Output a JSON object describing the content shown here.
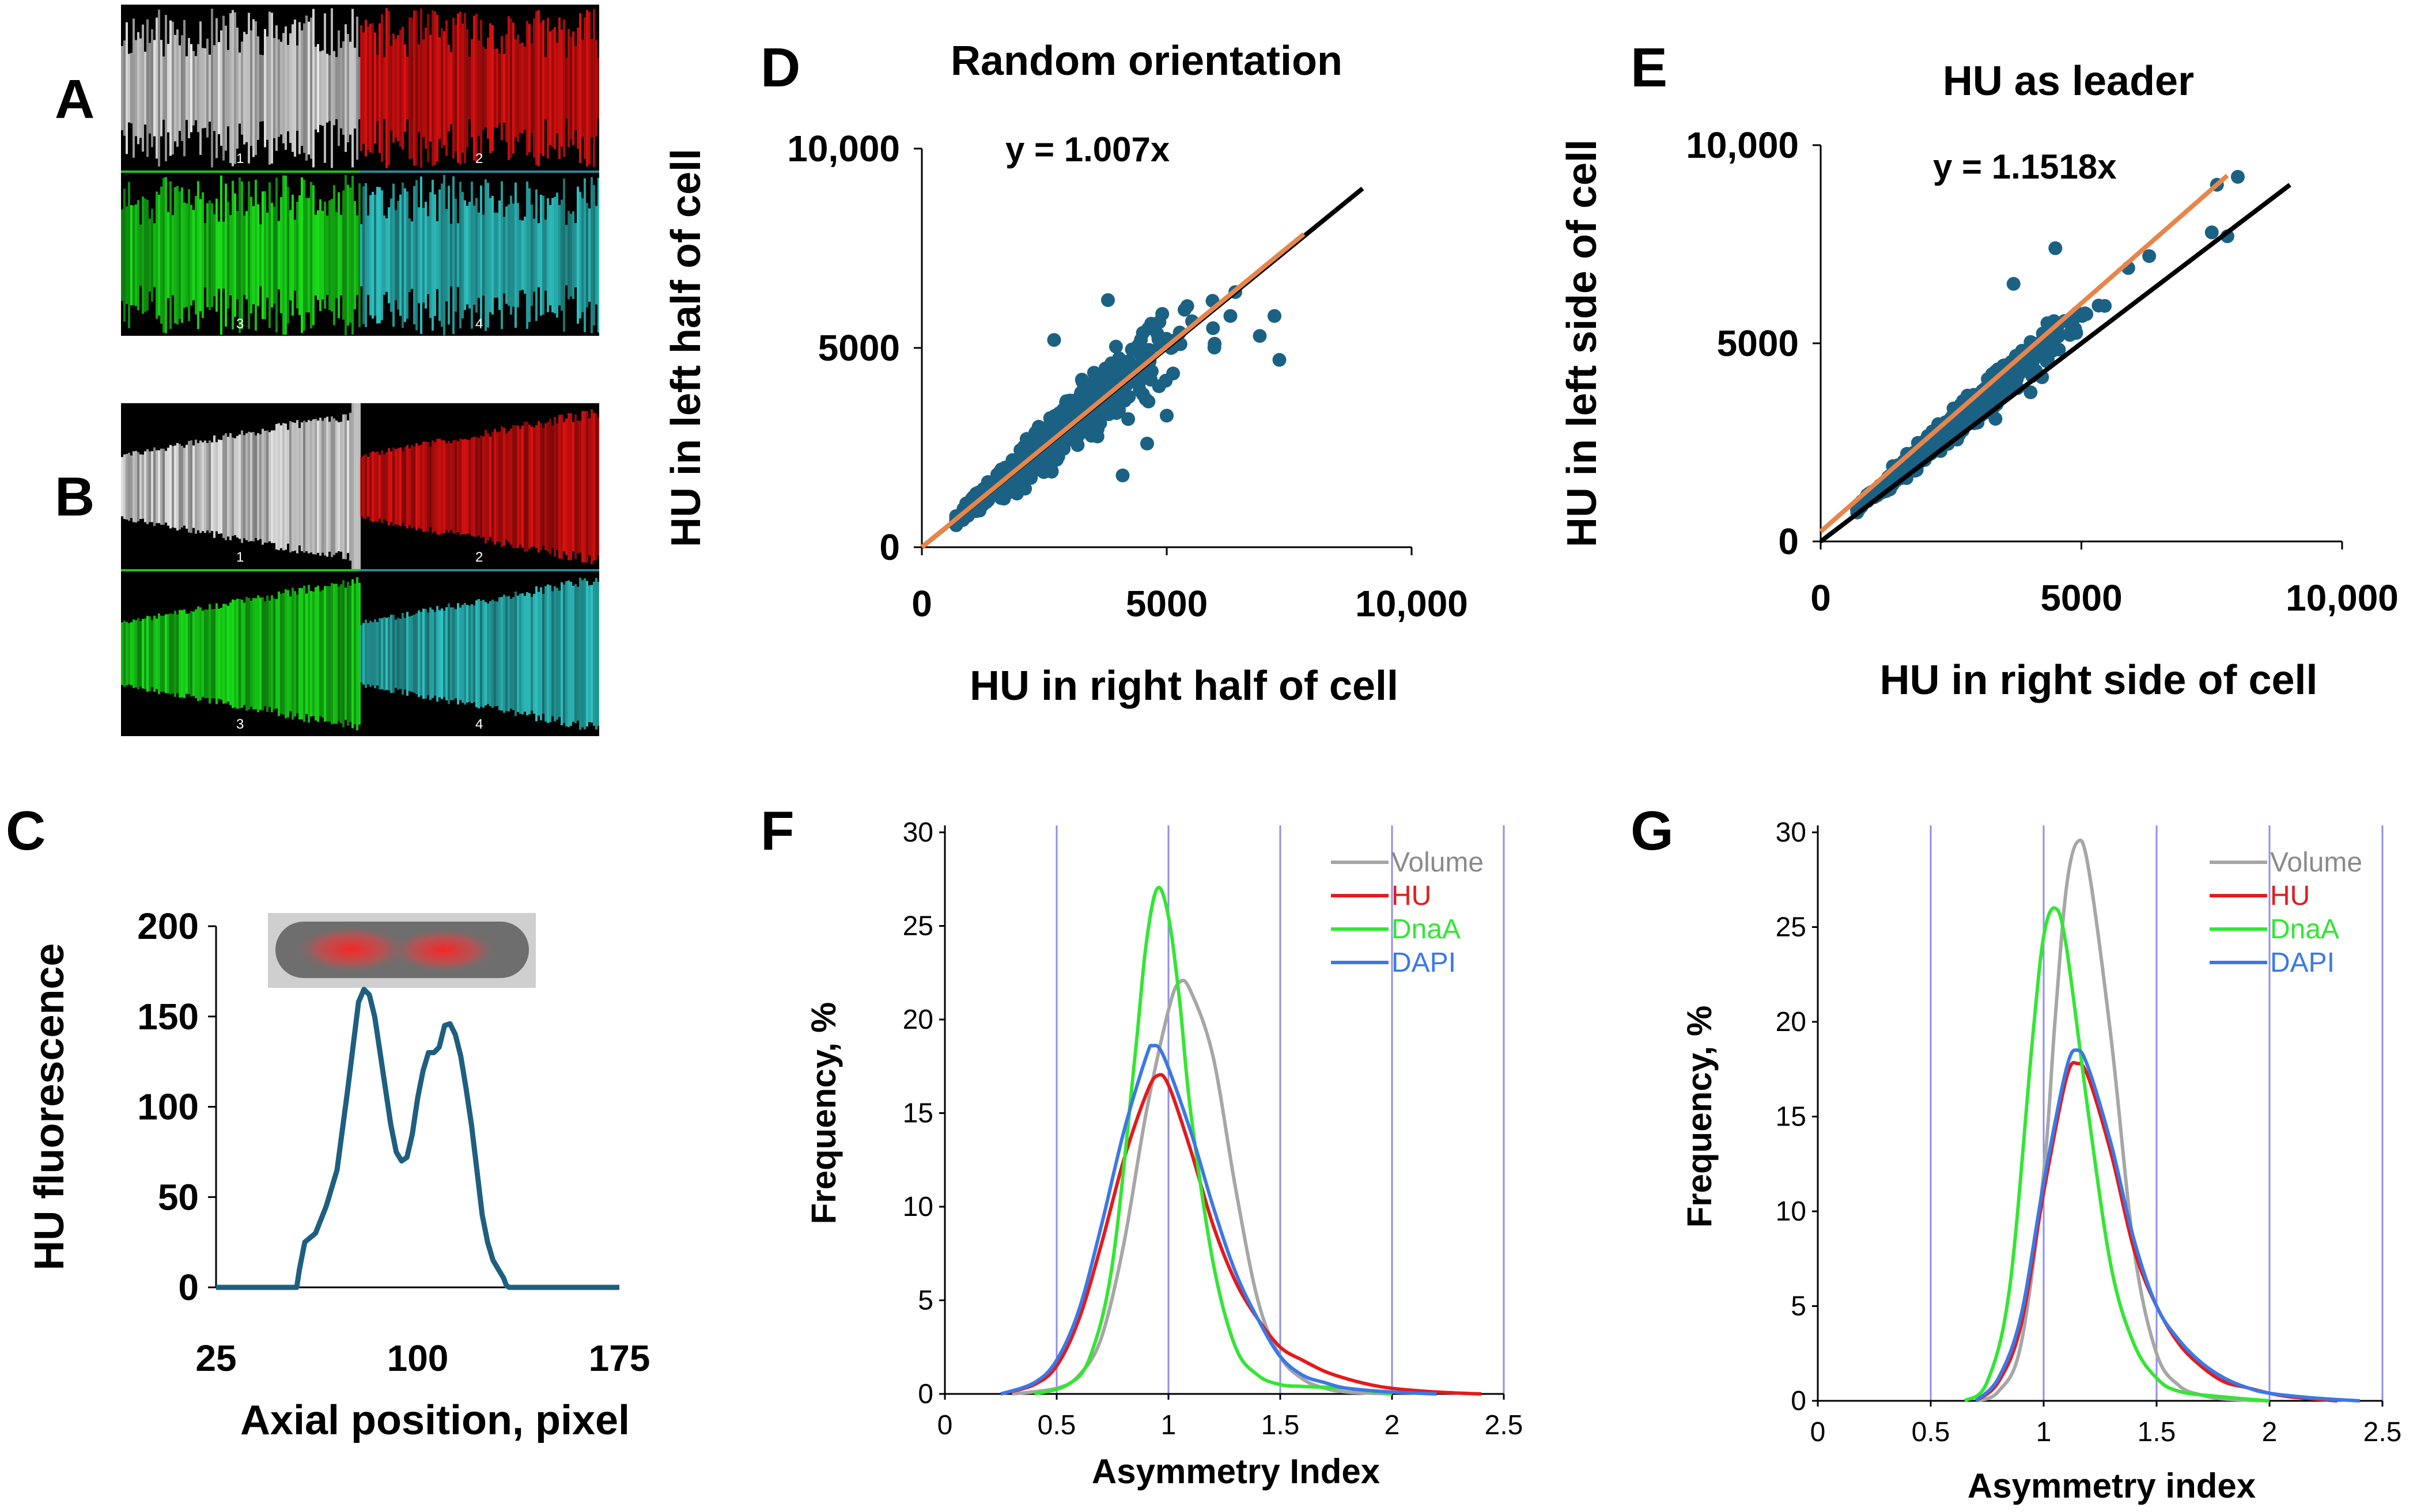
{
  "panels": {
    "A": {
      "label": "A",
      "tiles": [
        {
          "number": "1",
          "color": "#e6e6e6"
        },
        {
          "number": "2",
          "color": "#e01010"
        },
        {
          "number": "3",
          "color": "#19e019"
        },
        {
          "number": "4",
          "color": "#2fc4c4"
        }
      ]
    },
    "B": {
      "label": "B",
      "tiles": [
        {
          "number": "1",
          "color": "#e6e6e6"
        },
        {
          "number": "2",
          "color": "#e01010"
        },
        {
          "number": "3",
          "color": "#19e019"
        },
        {
          "number": "4",
          "color": "#2fc4c4"
        }
      ]
    },
    "C": {
      "label": "C"
    },
    "D": {
      "label": "D"
    },
    "E": {
      "label": "E"
    },
    "F": {
      "label": "F"
    },
    "G": {
      "label": "G"
    }
  },
  "colors": {
    "scatter": "#1b6184",
    "fit": "#e8854a",
    "identity": "#000000",
    "profile": "#1e5f80",
    "volume": "#a6a6a6",
    "hu": "#e41a1c",
    "dnaa": "#33e633",
    "dapi": "#3b78e7",
    "grid": "#8f8fe8"
  },
  "chart_data": [
    {
      "id": "C",
      "type": "line",
      "title": "",
      "xlabel": "Axial position, pixel",
      "ylabel": "HU fluorescence",
      "xlim": [
        25,
        175
      ],
      "ylim": [
        0,
        200
      ],
      "xticks": [
        "25",
        "100",
        "175"
      ],
      "xtick_values": [
        25,
        100,
        175
      ],
      "yticks": [
        "0",
        "50",
        "100",
        "150",
        "200"
      ],
      "ytick_values": [
        0,
        50,
        100,
        150,
        200
      ],
      "x": [
        25,
        55,
        56,
        58,
        62,
        66,
        70,
        74,
        78,
        80,
        82,
        84,
        86,
        88,
        90,
        92,
        94,
        96,
        98,
        100,
        102,
        104,
        106,
        108,
        110,
        112,
        114,
        116,
        118,
        120,
        122,
        124,
        126,
        128,
        130,
        132,
        133,
        134,
        175
      ],
      "y": [
        0,
        0,
        10,
        25,
        30,
        45,
        65,
        110,
        158,
        165,
        162,
        150,
        130,
        110,
        90,
        75,
        70,
        72,
        85,
        105,
        120,
        130,
        130,
        133,
        145,
        146,
        140,
        128,
        110,
        90,
        65,
        40,
        25,
        15,
        10,
        5,
        1,
        0,
        0
      ]
    },
    {
      "id": "D",
      "type": "scatter",
      "title": "Random orientation",
      "xlabel": "HU in right half of cell",
      "ylabel": "HU in left half of cell",
      "xlim": [
        0,
        10000
      ],
      "ylim": [
        0,
        10000
      ],
      "xticks": [
        "0",
        "5000",
        "10,000"
      ],
      "xtick_values": [
        0,
        5000,
        10000
      ],
      "yticks": [
        "0",
        "5000",
        "10,000"
      ],
      "ytick_values": [
        0,
        5000,
        10000
      ],
      "fit_label": "y = 1.007x",
      "fit_slope": 1.007,
      "identity_line_xrange": [
        0,
        9000
      ],
      "fit_line_xrange": [
        0,
        7800
      ],
      "n_points": 640,
      "spread": 0.11,
      "x_mean": 2700,
      "x_sd": 1050,
      "x_range": [
        700,
        8000
      ],
      "outliers": [
        [
          6400,
          6400
        ],
        [
          6300,
          5800
        ],
        [
          7200,
          5800
        ],
        [
          7300,
          4700
        ],
        [
          6900,
          5300
        ],
        [
          4100,
          1800
        ],
        [
          4600,
          2600
        ],
        [
          5000,
          3300
        ],
        [
          2700,
          5200
        ],
        [
          3800,
          6200
        ]
      ]
    },
    {
      "id": "E",
      "type": "scatter",
      "title": "HU as leader",
      "xlabel": "HU in right side of cell",
      "ylabel": "HU in left side of cell",
      "xlim": [
        0,
        10000
      ],
      "ylim": [
        0,
        10000
      ],
      "xticks": [
        "0",
        "5000",
        "10,000"
      ],
      "xtick_values": [
        0,
        5000,
        10000
      ],
      "yticks": [
        "0",
        "5000",
        "10,000"
      ],
      "ytick_values": [
        0,
        5000,
        10000
      ],
      "fit_label": "y = 1.1518x",
      "fit_slope": 1.1518,
      "identity_line_xrange": [
        0,
        9000
      ],
      "fit_line_xrange": [
        0,
        7800
      ],
      "n_points": 640,
      "spread": 0.06,
      "x_mean": 2600,
      "x_sd": 1000,
      "x_range": [
        700,
        8000
      ],
      "outliers": [
        [
          3700,
          6500
        ],
        [
          4500,
          7400
        ],
        [
          7600,
          9000
        ],
        [
          8000,
          9200
        ],
        [
          7500,
          7800
        ],
        [
          7800,
          7700
        ],
        [
          5900,
          6900
        ],
        [
          6300,
          7200
        ]
      ]
    },
    {
      "id": "F",
      "type": "line",
      "title": "",
      "xlabel": "Asymmetry Index",
      "ylabel": "Frequency, %",
      "xlim": [
        0,
        2.5
      ],
      "ylim": [
        0,
        30
      ],
      "xticks": [
        "0",
        "0.5",
        "1",
        "1.5",
        "2",
        "2.5"
      ],
      "xtick_values": [
        0,
        0.5,
        1,
        1.5,
        2,
        2.5
      ],
      "yticks": [
        "0",
        "5",
        "10",
        "15",
        "20",
        "25",
        "30"
      ],
      "ytick_values": [
        0,
        5,
        10,
        15,
        20,
        25,
        30
      ],
      "vgrid": [
        0.5,
        1,
        1.5,
        2,
        2.5
      ],
      "legend_position": "top-right",
      "series": [
        {
          "name": "Volume",
          "color_key": "volume",
          "x": [
            0.3,
            0.5,
            0.6,
            0.7,
            0.8,
            0.9,
            1.0,
            1.05,
            1.1,
            1.2,
            1.3,
            1.4,
            1.5,
            1.6,
            1.7,
            1.8,
            2.0
          ],
          "y": [
            0,
            0.3,
            1.0,
            3.0,
            8.0,
            15.0,
            20.5,
            22.0,
            21.5,
            18.0,
            11.0,
            5.0,
            2.0,
            0.8,
            0.3,
            0.1,
            0
          ]
        },
        {
          "name": "HU",
          "color_key": "hu",
          "x": [
            0.25,
            0.4,
            0.5,
            0.6,
            0.7,
            0.8,
            0.9,
            0.95,
            1.0,
            1.1,
            1.2,
            1.3,
            1.4,
            1.5,
            1.6,
            1.7,
            1.8,
            1.9,
            2.0,
            2.2,
            2.4
          ],
          "y": [
            0,
            0.5,
            1.5,
            4.0,
            8.0,
            12.5,
            16.0,
            17.0,
            16.5,
            13.0,
            9.0,
            6.0,
            4.0,
            2.5,
            1.8,
            1.2,
            0.8,
            0.5,
            0.3,
            0.1,
            0
          ]
        },
        {
          "name": "DnaA",
          "color_key": "dnaa",
          "x": [
            0.4,
            0.55,
            0.65,
            0.75,
            0.85,
            0.9,
            0.95,
            1.0,
            1.05,
            1.1,
            1.2,
            1.3,
            1.4,
            1.5,
            1.6,
            1.8,
            2.0
          ],
          "y": [
            0,
            0.5,
            2.0,
            7.0,
            18.0,
            24.0,
            27.0,
            25.5,
            21.0,
            15.0,
            7.0,
            2.5,
            1.0,
            0.5,
            0.4,
            0.3,
            0
          ]
        },
        {
          "name": "DAPI",
          "color_key": "dapi",
          "x": [
            0.25,
            0.4,
            0.5,
            0.6,
            0.7,
            0.8,
            0.9,
            0.93,
            0.98,
            1.1,
            1.2,
            1.3,
            1.4,
            1.5,
            1.6,
            1.7,
            1.8,
            2.0,
            2.2
          ],
          "y": [
            0,
            0.6,
            1.8,
            4.5,
            9.0,
            14.0,
            18.0,
            18.6,
            18.0,
            14.0,
            10.0,
            6.5,
            4.0,
            2.0,
            1.0,
            0.6,
            0.3,
            0.1,
            0
          ]
        }
      ]
    },
    {
      "id": "G",
      "type": "line",
      "title": "",
      "xlabel": "Asymmetry index",
      "ylabel": "Frequency, %",
      "xlim": [
        0,
        2.5
      ],
      "ylim": [
        0,
        30
      ],
      "xticks": [
        "0",
        "0.5",
        "1",
        "1.5",
        "2",
        "2.5"
      ],
      "xtick_values": [
        0,
        0.5,
        1,
        1.5,
        2,
        2.5
      ],
      "yticks": [
        "0",
        "5",
        "10",
        "15",
        "20",
        "25",
        "30"
      ],
      "ytick_values": [
        0,
        5,
        10,
        15,
        20,
        25,
        30
      ],
      "vgrid": [
        0.5,
        1,
        1.5,
        2,
        2.5
      ],
      "legend_position": "top-right",
      "series": [
        {
          "name": "Volume",
          "color_key": "volume",
          "x": [
            0.7,
            0.8,
            0.9,
            1.0,
            1.05,
            1.1,
            1.15,
            1.2,
            1.3,
            1.4,
            1.5,
            1.6,
            1.7,
            1.8,
            2.0
          ],
          "y": [
            0,
            0.5,
            3.0,
            12.0,
            20.0,
            27.0,
            29.5,
            28.0,
            19.0,
            8.0,
            2.5,
            0.8,
            0.3,
            0.1,
            0
          ]
        },
        {
          "name": "HU",
          "color_key": "hu",
          "x": [
            0.7,
            0.8,
            0.9,
            1.0,
            1.1,
            1.15,
            1.2,
            1.3,
            1.4,
            1.5,
            1.6,
            1.7,
            1.8,
            1.9,
            2.0,
            2.1,
            2.3
          ],
          "y": [
            0,
            1.0,
            4.0,
            11.0,
            17.0,
            17.8,
            17.0,
            13.0,
            8.0,
            5.0,
            3.0,
            1.8,
            1.0,
            0.7,
            0.4,
            0.2,
            0
          ]
        },
        {
          "name": "DnaA",
          "color_key": "dnaa",
          "x": [
            0.65,
            0.75,
            0.85,
            0.95,
            1.0,
            1.05,
            1.1,
            1.2,
            1.3,
            1.4,
            1.5,
            1.6,
            1.8,
            2.0
          ],
          "y": [
            0,
            1.0,
            6.0,
            19.0,
            24.5,
            26.0,
            24.0,
            15.0,
            7.0,
            3.0,
            1.2,
            0.5,
            0.2,
            0
          ]
        },
        {
          "name": "DAPI",
          "color_key": "dapi",
          "x": [
            0.7,
            0.8,
            0.9,
            1.0,
            1.1,
            1.15,
            1.2,
            1.3,
            1.4,
            1.5,
            1.6,
            1.7,
            1.8,
            1.9,
            2.0,
            2.2,
            2.4
          ],
          "y": [
            0,
            1.2,
            4.5,
            11.5,
            17.5,
            18.5,
            17.5,
            13.5,
            8.5,
            5.0,
            3.2,
            2.0,
            1.2,
            0.7,
            0.4,
            0.15,
            0
          ]
        }
      ]
    }
  ]
}
